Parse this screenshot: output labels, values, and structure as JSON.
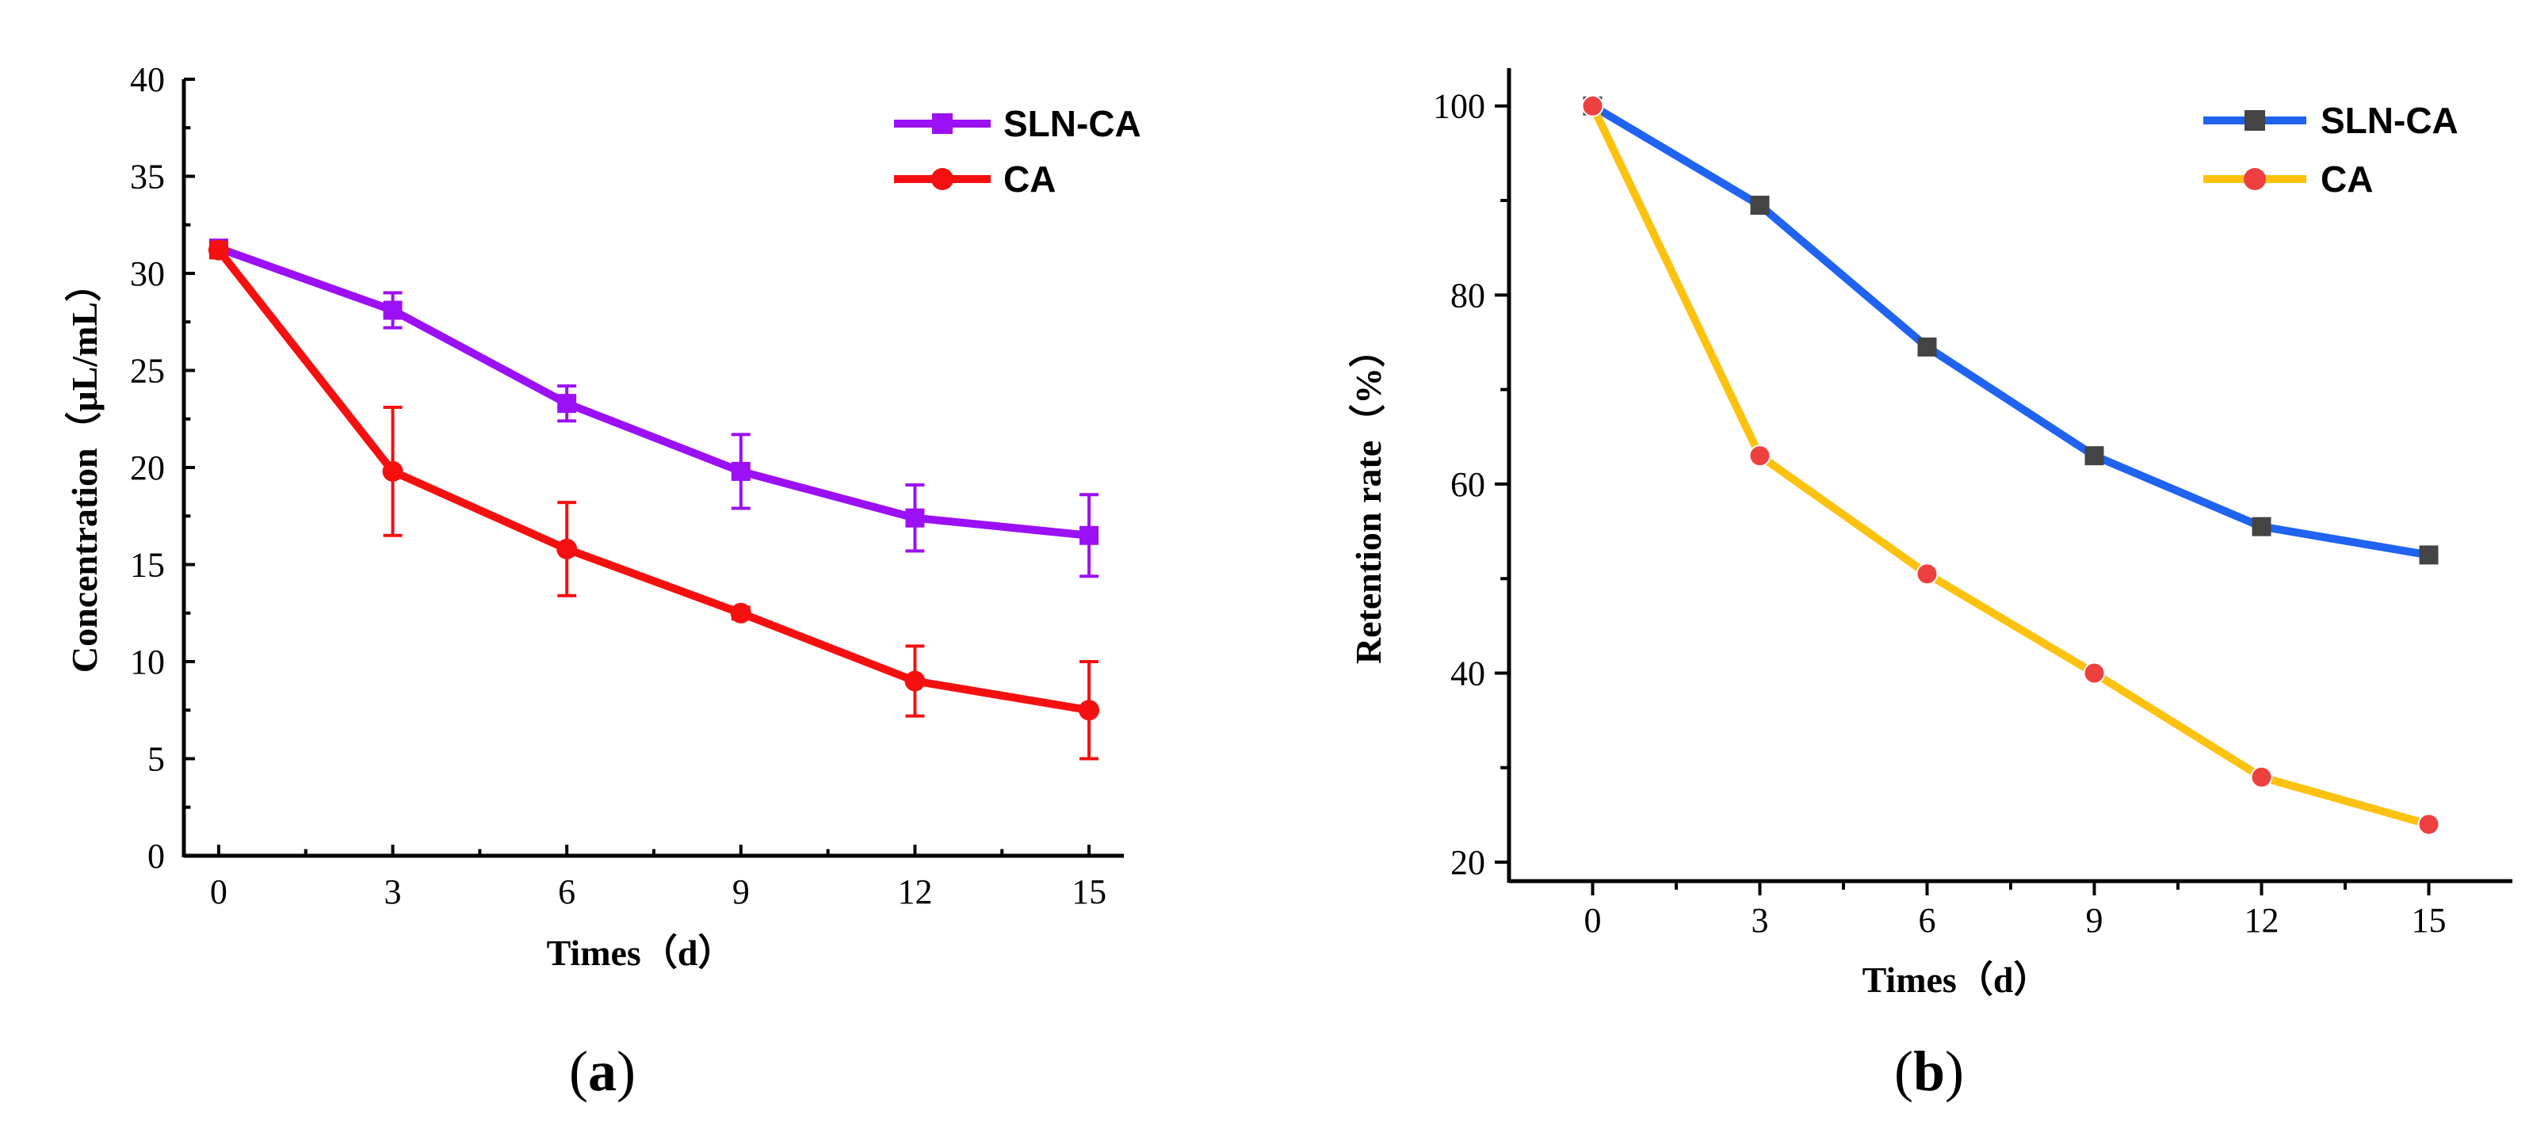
{
  "figure": {
    "colors": {
      "axis": "#000000",
      "errorbar_b_marker_square": "#333333"
    }
  },
  "chart_data": [
    {
      "id": "a",
      "type": "line",
      "panel_label": {
        "open": "(",
        "letter": "a",
        "close": ")"
      },
      "xlabel": "Times（d）",
      "ylabel": "Concentration（μL/mL）",
      "x": [
        0,
        3,
        6,
        9,
        12,
        15
      ],
      "xticks": [
        "0",
        "3",
        "6",
        "9",
        "12",
        "15"
      ],
      "xlim": [
        -0.6,
        15.6
      ],
      "ylim": [
        0,
        40
      ],
      "yticks": [
        "0",
        "5",
        "10",
        "15",
        "20",
        "25",
        "30",
        "35",
        "40"
      ],
      "ytick_values": [
        0,
        5,
        10,
        15,
        20,
        25,
        30,
        35,
        40
      ],
      "grid": false,
      "legend_position": "top-right",
      "series": [
        {
          "name": "SLN-CA",
          "color": "#9b10f5",
          "marker": "square",
          "values": [
            31.3,
            28.1,
            23.3,
            19.8,
            17.4,
            16.5
          ],
          "errors": [
            0.4,
            0.9,
            0.9,
            1.9,
            1.7,
            2.1
          ]
        },
        {
          "name": "CA",
          "color": "#f51010",
          "marker": "circle",
          "values": [
            31.2,
            19.8,
            15.8,
            12.5,
            9.0,
            7.5
          ],
          "errors": [
            0.4,
            3.3,
            2.4,
            0.3,
            1.8,
            2.5
          ]
        }
      ]
    },
    {
      "id": "b",
      "type": "line",
      "panel_label": {
        "open": "(",
        "letter": "b",
        "close": ")"
      },
      "xlabel": "Times（d）",
      "ylabel": "Retention rate（%）",
      "x": [
        0,
        3,
        6,
        9,
        12,
        15
      ],
      "xticks": [
        "0",
        "3",
        "6",
        "9",
        "12",
        "15"
      ],
      "xlim": [
        -1.5,
        16.5
      ],
      "ylim": [
        18,
        104
      ],
      "yticks": [
        "20",
        "40",
        "60",
        "80",
        "100"
      ],
      "ytick_values": [
        20,
        40,
        60,
        80,
        100
      ],
      "grid": false,
      "legend_position": "top-right",
      "series": [
        {
          "name": "SLN-CA",
          "color": "#1f63f0",
          "marker_color": "#444444",
          "marker": "square",
          "values": [
            100,
            89.5,
            74.5,
            63,
            55.5,
            52.5
          ]
        },
        {
          "name": "CA",
          "color": "#fcc20f",
          "marker_color": "#ef4040",
          "marker": "circle",
          "values": [
            100,
            63,
            50.5,
            40,
            29,
            24
          ]
        }
      ]
    }
  ]
}
